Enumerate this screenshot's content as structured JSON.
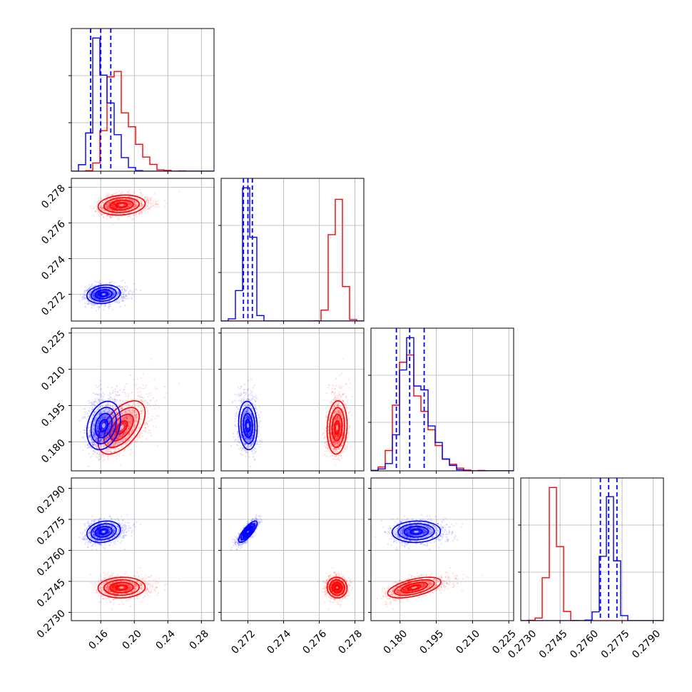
{
  "chart_data": {
    "type": "corner",
    "colors": {
      "series_a": "#ff0000",
      "series_b": "#0000ff",
      "grid": "#b0b0b0"
    },
    "params": [
      {
        "ticks": [
          0.16,
          0.2,
          0.24,
          0.28
        ],
        "tick_labels": [
          "0.16",
          "0.20",
          "0.24",
          "0.28"
        ],
        "range": [
          0.125,
          0.295
        ]
      },
      {
        "ticks": [
          0.272,
          0.274,
          0.276,
          0.278
        ],
        "tick_labels": [
          "0.272",
          "0.274",
          "0.276",
          "0.278"
        ],
        "range": [
          0.2705,
          0.2785
        ]
      },
      {
        "ticks": [
          0.18,
          0.195,
          0.21,
          0.225
        ],
        "tick_labels": [
          "0.180",
          "0.195",
          "0.210",
          "0.225"
        ],
        "range": [
          0.168,
          0.227
        ]
      },
      {
        "ticks": [
          0.273,
          0.2745,
          0.276,
          0.2775,
          0.279
        ],
        "tick_labels": [
          "0.2730",
          "0.2745",
          "0.2760",
          "0.2775",
          "0.2790"
        ],
        "range": [
          0.2726,
          0.2795
        ]
      }
    ],
    "series": [
      {
        "name": "",
        "color": "#ff0000",
        "mean": [
          0.18,
          0.277,
          0.184,
          0.2742
        ],
        "std": [
          0.014,
          0.00028,
          0.0055,
          0.00025
        ],
        "corr": [
          0.15,
          0.55,
          0.05,
          0.1,
          -0.05,
          0.55
        ],
        "quantiles": null
      },
      {
        "name": "",
        "color": "#0000ff",
        "mean": [
          0.16,
          0.272,
          0.185,
          0.2769
        ],
        "std": [
          0.01,
          0.00026,
          0.005,
          0.00026
        ],
        "corr": [
          0.15,
          0.25,
          0.2,
          -0.1,
          0.8,
          0.05
        ],
        "quantiles": [
          [
            0.148,
            0.16,
            0.172
          ],
          [
            0.27175,
            0.272,
            0.27225
          ],
          [
            0.1785,
            0.184,
            0.19
          ],
          [
            0.27645,
            0.27685,
            0.27725
          ]
        ]
      }
    ]
  }
}
